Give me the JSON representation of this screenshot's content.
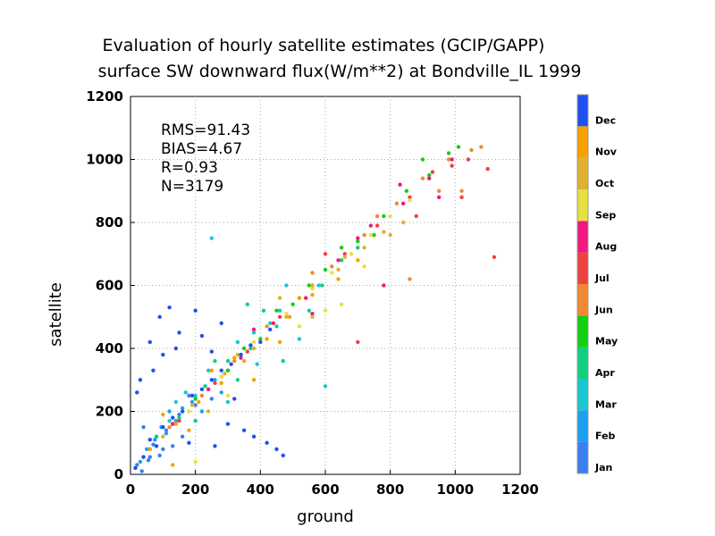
{
  "chart_data": {
    "type": "scatter",
    "title": "Evaluation of hourly satellite estimates (GCIP/GAPP)",
    "subtitle": "surface SW downward flux(W/m**2) at Bondville_IL 1999",
    "xlabel": "ground",
    "ylabel": "satellite",
    "xlim": [
      0,
      1200
    ],
    "ylim": [
      0,
      1200
    ],
    "xticks": [
      "0",
      "200",
      "400",
      "600",
      "800",
      "1000",
      "1200"
    ],
    "yticks": [
      "0",
      "200",
      "400",
      "600",
      "800",
      "1000",
      "1200"
    ],
    "grid": true,
    "stats": [
      "RMS=91.43",
      "BIAS=4.67",
      "R=0.93",
      "N=3179"
    ],
    "legend": {
      "placement": "right",
      "entries": [
        {
          "name": "Jan",
          "color": "#3a7ff0"
        },
        {
          "name": "Feb",
          "color": "#1aa0f0"
        },
        {
          "name": "Mar",
          "color": "#18c8d0"
        },
        {
          "name": "Apr",
          "color": "#10d080"
        },
        {
          "name": "May",
          "color": "#10d010"
        },
        {
          "name": "Jun",
          "color": "#f08830"
        },
        {
          "name": "Jul",
          "color": "#f04040"
        },
        {
          "name": "Aug",
          "color": "#f01880"
        },
        {
          "name": "Sep",
          "color": "#e8e040"
        },
        {
          "name": "Oct",
          "color": "#e0b030"
        },
        {
          "name": "Nov",
          "color": "#f8a000"
        },
        {
          "name": "Dec",
          "color": "#2050f0"
        }
      ]
    },
    "series": [
      {
        "name": "Jan",
        "points": [
          [
            20,
            30
          ],
          [
            35,
            10
          ],
          [
            60,
            55
          ],
          [
            80,
            120
          ],
          [
            100,
            80
          ],
          [
            130,
            160
          ],
          [
            150,
            190
          ],
          [
            40,
            150
          ],
          [
            70,
            95
          ],
          [
            110,
            140
          ],
          [
            200,
            220
          ],
          [
            160,
            120
          ],
          [
            90,
            60
          ],
          [
            180,
            250
          ],
          [
            230,
            280
          ],
          [
            250,
            240
          ],
          [
            130,
            90
          ],
          [
            55,
            45
          ]
        ]
      },
      {
        "name": "Feb",
        "points": [
          [
            30,
            40
          ],
          [
            75,
            110
          ],
          [
            110,
            130
          ],
          [
            140,
            170
          ],
          [
            190,
            230
          ],
          [
            220,
            200
          ],
          [
            260,
            300
          ],
          [
            300,
            330
          ],
          [
            160,
            210
          ],
          [
            95,
            150
          ],
          [
            280,
            260
          ],
          [
            340,
            380
          ],
          [
            120,
            200
          ],
          [
            50,
            80
          ]
        ]
      },
      {
        "name": "Mar",
        "points": [
          [
            60,
            80
          ],
          [
            120,
            170
          ],
          [
            200,
            250
          ],
          [
            280,
            310
          ],
          [
            330,
            420
          ],
          [
            380,
            450
          ],
          [
            430,
            480
          ],
          [
            460,
            520
          ],
          [
            240,
            330
          ],
          [
            170,
            260
          ],
          [
            520,
            430
          ],
          [
            580,
            600
          ],
          [
            300,
            230
          ],
          [
            140,
            230
          ],
          [
            390,
            350
          ],
          [
            600,
            280
          ],
          [
            250,
            750
          ],
          [
            480,
            600
          ]
        ]
      },
      {
        "name": "Apr",
        "points": [
          [
            80,
            120
          ],
          [
            150,
            180
          ],
          [
            230,
            280
          ],
          [
            300,
            360
          ],
          [
            370,
            400
          ],
          [
            450,
            470
          ],
          [
            520,
            560
          ],
          [
            590,
            600
          ],
          [
            650,
            680
          ],
          [
            700,
            720
          ],
          [
            260,
            360
          ],
          [
            410,
            520
          ],
          [
            200,
            170
          ],
          [
            550,
            520
          ],
          [
            360,
            540
          ],
          [
            470,
            360
          ],
          [
            330,
            300
          ]
        ]
      },
      {
        "name": "May",
        "points": [
          [
            100,
            150
          ],
          [
            200,
            240
          ],
          [
            300,
            330
          ],
          [
            400,
            430
          ],
          [
            500,
            540
          ],
          [
            600,
            650
          ],
          [
            700,
            740
          ],
          [
            780,
            820
          ],
          [
            850,
            900
          ],
          [
            920,
            950
          ],
          [
            980,
            1020
          ],
          [
            1010,
            1040
          ],
          [
            450,
            520
          ],
          [
            650,
            720
          ],
          [
            900,
            1000
          ],
          [
            750,
            760
          ],
          [
            550,
            600
          ],
          [
            350,
            400
          ]
        ]
      },
      {
        "name": "Jun",
        "points": [
          [
            120,
            150
          ],
          [
            220,
            250
          ],
          [
            320,
            360
          ],
          [
            420,
            470
          ],
          [
            520,
            560
          ],
          [
            620,
            660
          ],
          [
            720,
            760
          ],
          [
            820,
            860
          ],
          [
            900,
            940
          ],
          [
            980,
            1000
          ],
          [
            1050,
            1030
          ],
          [
            1080,
            1040
          ],
          [
            560,
            640
          ],
          [
            760,
            820
          ],
          [
            950,
            900
          ],
          [
            860,
            620
          ],
          [
            1020,
            900
          ]
        ]
      },
      {
        "name": "Jul",
        "points": [
          [
            150,
            170
          ],
          [
            260,
            290
          ],
          [
            360,
            390
          ],
          [
            460,
            500
          ],
          [
            560,
            600
          ],
          [
            660,
            700
          ],
          [
            760,
            790
          ],
          [
            860,
            880
          ],
          [
            930,
            960
          ],
          [
            990,
            980
          ],
          [
            1040,
            1000
          ],
          [
            1100,
            970
          ],
          [
            1120,
            690
          ],
          [
            700,
            420
          ],
          [
            880,
            820
          ],
          [
            600,
            700
          ],
          [
            1020,
            880
          ]
        ]
      },
      {
        "name": "Aug",
        "points": [
          [
            130,
            160
          ],
          [
            240,
            270
          ],
          [
            340,
            370
          ],
          [
            440,
            480
          ],
          [
            540,
            560
          ],
          [
            640,
            680
          ],
          [
            740,
            790
          ],
          [
            840,
            860
          ],
          [
            920,
            940
          ],
          [
            990,
            1000
          ],
          [
            380,
            460
          ],
          [
            830,
            920
          ],
          [
            780,
            600
          ],
          [
            950,
            880
          ],
          [
            560,
            510
          ],
          [
            700,
            750
          ]
        ]
      },
      {
        "name": "Sep",
        "points": [
          [
            180,
            200
          ],
          [
            280,
            310
          ],
          [
            380,
            420
          ],
          [
            480,
            510
          ],
          [
            560,
            590
          ],
          [
            620,
            640
          ],
          [
            680,
            700
          ],
          [
            740,
            760
          ],
          [
            800,
            820
          ],
          [
            860,
            870
          ],
          [
            600,
            520
          ],
          [
            650,
            540
          ],
          [
            720,
            660
          ],
          [
            520,
            470
          ],
          [
            300,
            250
          ],
          [
            420,
            430
          ],
          [
            200,
            40
          ]
        ]
      },
      {
        "name": "Oct",
        "points": [
          [
            100,
            120
          ],
          [
            190,
            220
          ],
          [
            290,
            320
          ],
          [
            380,
            400
          ],
          [
            480,
            500
          ],
          [
            560,
            600
          ],
          [
            640,
            650
          ],
          [
            720,
            720
          ],
          [
            780,
            770
          ],
          [
            840,
            800
          ],
          [
            460,
            560
          ],
          [
            330,
            380
          ],
          [
            560,
            500
          ],
          [
            660,
            690
          ],
          [
            240,
            200
          ],
          [
            800,
            760
          ]
        ]
      },
      {
        "name": "Nov",
        "points": [
          [
            60,
            80
          ],
          [
            140,
            160
          ],
          [
            210,
            230
          ],
          [
            280,
            290
          ],
          [
            350,
            360
          ],
          [
            420,
            430
          ],
          [
            490,
            500
          ],
          [
            560,
            570
          ],
          [
            640,
            620
          ],
          [
            700,
            680
          ],
          [
            250,
            330
          ],
          [
            180,
            140
          ],
          [
            380,
            300
          ],
          [
            100,
            190
          ],
          [
            320,
            370
          ],
          [
            460,
            420
          ],
          [
            520,
            560
          ],
          [
            130,
            30
          ]
        ]
      },
      {
        "name": "Dec",
        "points": [
          [
            15,
            20
          ],
          [
            40,
            55
          ],
          [
            60,
            110
          ],
          [
            80,
            90
          ],
          [
            100,
            150
          ],
          [
            130,
            180
          ],
          [
            160,
            200
          ],
          [
            190,
            250
          ],
          [
            220,
            270
          ],
          [
            250,
            300
          ],
          [
            280,
            330
          ],
          [
            310,
            350
          ],
          [
            340,
            380
          ],
          [
            370,
            410
          ],
          [
            400,
            420
          ],
          [
            430,
            460
          ],
          [
            30,
            300
          ],
          [
            60,
            420
          ],
          [
            90,
            500
          ],
          [
            120,
            530
          ],
          [
            150,
            450
          ],
          [
            100,
            380
          ],
          [
            200,
            520
          ],
          [
            250,
            390
          ],
          [
            180,
            100
          ],
          [
            300,
            160
          ],
          [
            350,
            140
          ],
          [
            420,
            100
          ],
          [
            470,
            60
          ],
          [
            450,
            80
          ],
          [
            380,
            120
          ],
          [
            20,
            260
          ],
          [
            70,
            330
          ],
          [
            140,
            400
          ],
          [
            220,
            440
          ],
          [
            280,
            480
          ],
          [
            320,
            240
          ],
          [
            260,
            90
          ]
        ]
      }
    ]
  }
}
